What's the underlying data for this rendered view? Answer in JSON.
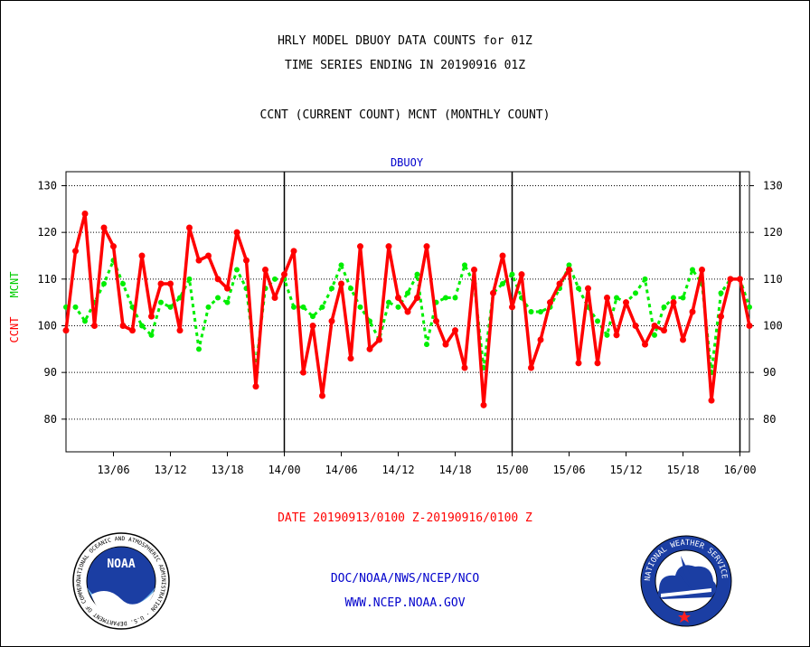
{
  "header": {
    "title_line1": "HRLY MODEL DBUOY DATA COUNTS for 01Z",
    "title_line2": "TIME SERIES ENDING IN 20190916 01Z",
    "subtitle": "CCNT (CURRENT COUNT) MCNT (MONTHLY COUNT)"
  },
  "footer": {
    "date_range": "DATE 20190913/0100 Z-20190916/0100 Z",
    "org_line": "DOC/NOAA/NWS/NCEP/NCO",
    "url_line": "WWW.NCEP.NOAA.GOV"
  },
  "logos": {
    "noaa_text": "NOAA",
    "noaa_ring": "NATIONAL OCEANIC AND ATMOSPHERIC ADMINISTRATION · U.S. DEPARTMENT OF COMMERCE",
    "nws_ring": "NATIONAL WEATHER SERVICE"
  },
  "colors": {
    "ccnt": "#ff0000",
    "mcnt": "#00ee00",
    "label_blue": "#0000cc",
    "date_red": "#ff0000"
  },
  "chart_data": {
    "type": "line",
    "title": "DBUOY",
    "ylabel_ccnt": "CCNT",
    "ylabel_mcnt": "MCNT",
    "ylim": [
      73,
      133
    ],
    "yticks": [
      80,
      90,
      100,
      110,
      120,
      130
    ],
    "xlim": [
      0,
      72
    ],
    "xticks": [
      {
        "x": 5,
        "label": "13/06"
      },
      {
        "x": 11,
        "label": "13/12"
      },
      {
        "x": 17,
        "label": "13/18"
      },
      {
        "x": 23,
        "label": "14/00"
      },
      {
        "x": 29,
        "label": "14/06"
      },
      {
        "x": 35,
        "label": "14/12"
      },
      {
        "x": 41,
        "label": "14/18"
      },
      {
        "x": 47,
        "label": "15/00"
      },
      {
        "x": 53,
        "label": "15/06"
      },
      {
        "x": 59,
        "label": "15/12"
      },
      {
        "x": 65,
        "label": "15/18"
      },
      {
        "x": 71,
        "label": "16/00"
      }
    ],
    "day_lines": [
      23,
      47,
      71
    ],
    "grid": true,
    "series": [
      {
        "name": "CCNT",
        "values": [
          99,
          116,
          124,
          100,
          121,
          117,
          100,
          99,
          115,
          102,
          109,
          109,
          99,
          121,
          114,
          115,
          110,
          108,
          120,
          114,
          87,
          112,
          106,
          111,
          116,
          90,
          100,
          85,
          101,
          109,
          93,
          117,
          95,
          97,
          117,
          106,
          103,
          106,
          117,
          101,
          96,
          99,
          91,
          112,
          83,
          107,
          115,
          104,
          111,
          91,
          97,
          105,
          109,
          112,
          92,
          108,
          92,
          106,
          98,
          105,
          100,
          96,
          100,
          99,
          105,
          97,
          103,
          112,
          84,
          102,
          110,
          110,
          100
        ]
      },
      {
        "name": "MCNT",
        "values": [
          104,
          104,
          101,
          105,
          109,
          114,
          109,
          104,
          100,
          98,
          105,
          104,
          106,
          110,
          95,
          104,
          106,
          105,
          112,
          108,
          91,
          108,
          110,
          110,
          104,
          104,
          102,
          104,
          108,
          113,
          108,
          104,
          101,
          97,
          105,
          104,
          107,
          111,
          96,
          105,
          106,
          106,
          113,
          109,
          91,
          107,
          109,
          111,
          106,
          103,
          103,
          104,
          108,
          113,
          108,
          104,
          101,
          98,
          106,
          105,
          107,
          110,
          98,
          104,
          106,
          106,
          112,
          109,
          90,
          107,
          110,
          110,
          104
        ]
      }
    ]
  }
}
